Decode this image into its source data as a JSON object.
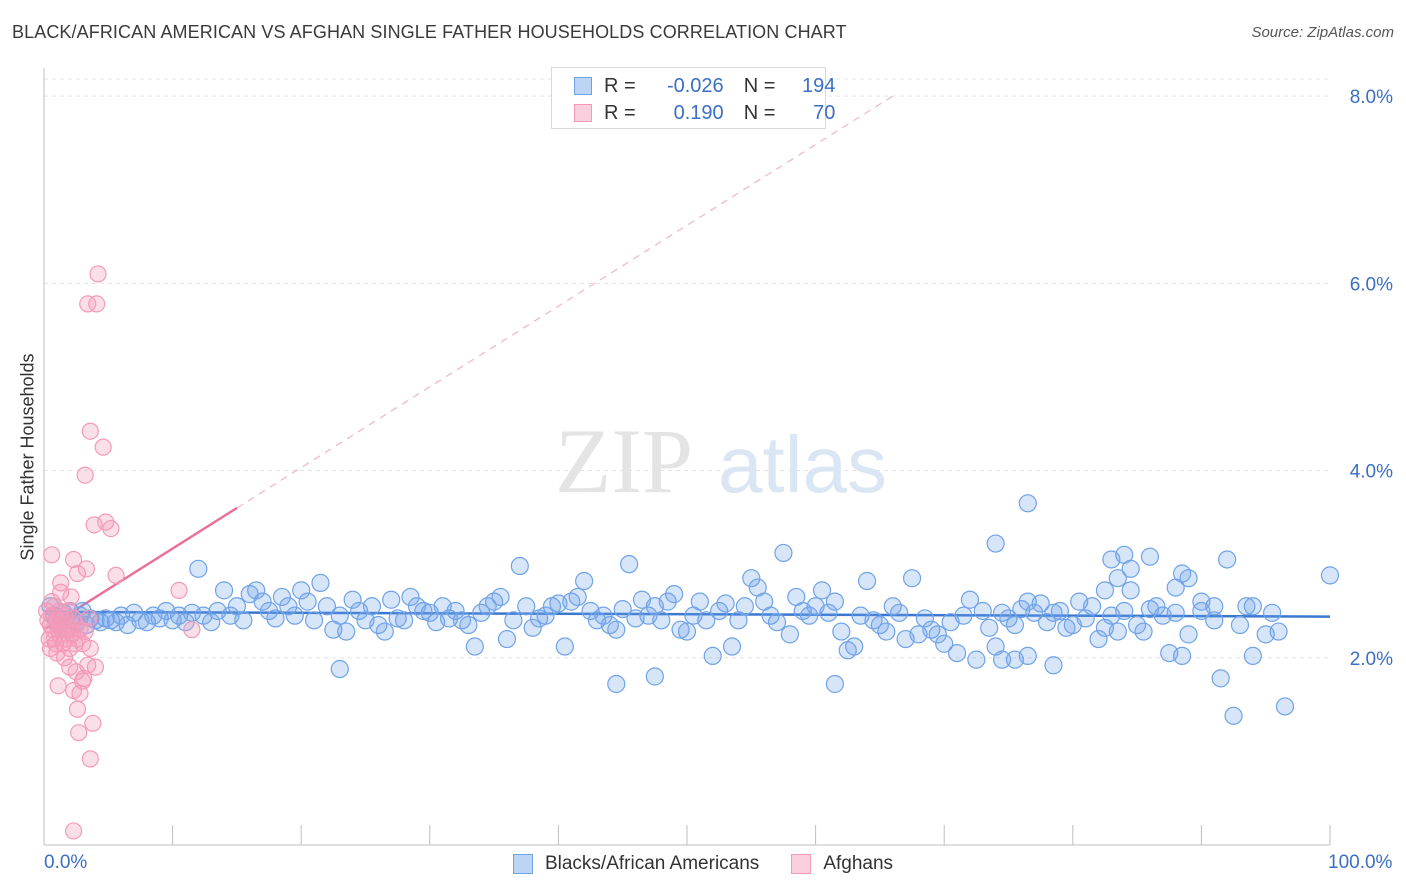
{
  "header": {
    "title": "BLACK/AFRICAN AMERICAN VS AFGHAN SINGLE FATHER HOUSEHOLDS CORRELATION CHART",
    "source": "Source: ZipAtlas.com"
  },
  "watermark": {
    "zip": "ZIP",
    "atlas": "atlas"
  },
  "legend": {
    "rows": [
      {
        "r_label": "R =",
        "r_value": "-0.026",
        "n_label": "N =",
        "n_value": "194"
      },
      {
        "r_label": "R =",
        "r_value": "0.190",
        "n_label": "N =",
        "n_value": "70"
      }
    ]
  },
  "colors": {
    "blue": "#6fa3e8",
    "blue_line": "#3a78d0",
    "pink": "#f49ab8",
    "pink_line": "#e8709a",
    "axis_text": "#3a6fc4"
  },
  "chart_data": {
    "type": "scatter",
    "title": "BLACK/AFRICAN AMERICAN VS AFGHAN SINGLE FATHER HOUSEHOLDS CORRELATION CHART",
    "xlabel": "",
    "ylabel": "Single Father Households",
    "xlim": [
      0,
      100
    ],
    "ylim": [
      0,
      8.3
    ],
    "x_tick_labels": [
      "0.0%",
      "100.0%"
    ],
    "y_ticks": [
      2,
      4,
      6,
      8
    ],
    "y_tick_labels": [
      "2.0%",
      "4.0%",
      "6.0%",
      "8.0%"
    ],
    "grid": "horizontal dashed",
    "legend_position": "bottom",
    "series": [
      {
        "name": "Blacks/African Americans",
        "color": "#6fa3e8",
        "trend": {
          "x": [
            0,
            100
          ],
          "y": [
            2.49,
            2.44
          ]
        },
        "points": [
          [
            0.5,
            2.55
          ],
          [
            0.8,
            2.45
          ],
          [
            1,
            2.4
          ],
          [
            1.2,
            2.35
          ],
          [
            1.5,
            2.48
          ],
          [
            1.8,
            2.3
          ],
          [
            2,
            2.5
          ],
          [
            2.2,
            2.42
          ],
          [
            2.5,
            2.38
          ],
          [
            2.8,
            2.45
          ],
          [
            3,
            2.5
          ],
          [
            3.3,
            2.35
          ],
          [
            3.6,
            2.42
          ],
          [
            4,
            2.4
          ],
          [
            4.4,
            2.38
          ],
          [
            4.8,
            2.42
          ],
          [
            5.2,
            2.4
          ],
          [
            5.6,
            2.38
          ],
          [
            6,
            2.45
          ],
          [
            6.5,
            2.35
          ],
          [
            7,
            2.48
          ],
          [
            7.5,
            2.4
          ],
          [
            8,
            2.38
          ],
          [
            8.5,
            2.45
          ],
          [
            9,
            2.42
          ],
          [
            9.5,
            2.5
          ],
          [
            10,
            2.4
          ],
          [
            10.5,
            2.45
          ],
          [
            11,
            2.38
          ],
          [
            11.5,
            2.48
          ],
          [
            12,
            2.95
          ],
          [
            12.4,
            2.45
          ],
          [
            13,
            2.38
          ],
          [
            13.5,
            2.5
          ],
          [
            14,
            2.72
          ],
          [
            14.5,
            2.45
          ],
          [
            15,
            2.55
          ],
          [
            15.5,
            2.4
          ],
          [
            16,
            2.68
          ],
          [
            16.5,
            2.72
          ],
          [
            17,
            2.6
          ],
          [
            17.5,
            2.5
          ],
          [
            18,
            2.42
          ],
          [
            18.5,
            2.65
          ],
          [
            19,
            2.55
          ],
          [
            19.5,
            2.45
          ],
          [
            20,
            2.72
          ],
          [
            20.5,
            2.6
          ],
          [
            21,
            2.4
          ],
          [
            21.5,
            2.8
          ],
          [
            22,
            2.55
          ],
          [
            22.5,
            2.3
          ],
          [
            23,
            2.45
          ],
          [
            23.5,
            2.28
          ],
          [
            24,
            2.62
          ],
          [
            24.5,
            2.5
          ],
          [
            25,
            2.4
          ],
          [
            25.5,
            2.55
          ],
          [
            26,
            2.35
          ],
          [
            26.5,
            2.28
          ],
          [
            27,
            2.62
          ],
          [
            27.5,
            2.42
          ],
          [
            28,
            2.4
          ],
          [
            28.5,
            2.65
          ],
          [
            29,
            2.55
          ],
          [
            29.5,
            2.5
          ],
          [
            30,
            2.48
          ],
          [
            30.5,
            2.38
          ],
          [
            31,
            2.55
          ],
          [
            31.5,
            2.42
          ],
          [
            32,
            2.5
          ],
          [
            32.5,
            2.4
          ],
          [
            33,
            2.35
          ],
          [
            33.5,
            2.12
          ],
          [
            34,
            2.48
          ],
          [
            34.5,
            2.55
          ],
          [
            35,
            2.6
          ],
          [
            35.5,
            2.65
          ],
          [
            36,
            2.2
          ],
          [
            36.5,
            2.4
          ],
          [
            37,
            2.98
          ],
          [
            37.5,
            2.55
          ],
          [
            38,
            2.32
          ],
          [
            38.5,
            2.42
          ],
          [
            39,
            2.45
          ],
          [
            39.5,
            2.55
          ],
          [
            40,
            2.58
          ],
          [
            40.5,
            2.12
          ],
          [
            41,
            2.6
          ],
          [
            41.5,
            2.65
          ],
          [
            42,
            2.82
          ],
          [
            42.5,
            2.5
          ],
          [
            43,
            2.4
          ],
          [
            43.5,
            2.45
          ],
          [
            44,
            2.35
          ],
          [
            44.5,
            2.3
          ],
          [
            45,
            2.52
          ],
          [
            45.5,
            3.0
          ],
          [
            46,
            2.42
          ],
          [
            46.5,
            2.62
          ],
          [
            47,
            2.45
          ],
          [
            47.5,
            2.55
          ],
          [
            48,
            2.4
          ],
          [
            48.5,
            2.6
          ],
          [
            49,
            2.68
          ],
          [
            49.5,
            2.3
          ],
          [
            50,
            2.28
          ],
          [
            50.5,
            2.45
          ],
          [
            51,
            2.6
          ],
          [
            51.5,
            2.4
          ],
          [
            52,
            2.02
          ],
          [
            52.5,
            2.5
          ],
          [
            53,
            2.58
          ],
          [
            53.5,
            2.12
          ],
          [
            54,
            2.4
          ],
          [
            54.5,
            2.55
          ],
          [
            55,
            2.85
          ],
          [
            55.5,
            2.75
          ],
          [
            56,
            2.6
          ],
          [
            56.5,
            2.45
          ],
          [
            57,
            2.38
          ],
          [
            57.5,
            3.12
          ],
          [
            58,
            2.25
          ],
          [
            58.5,
            2.65
          ],
          [
            59,
            2.5
          ],
          [
            59.5,
            2.45
          ],
          [
            60,
            2.55
          ],
          [
            60.5,
            2.72
          ],
          [
            61,
            2.48
          ],
          [
            61.5,
            2.6
          ],
          [
            62,
            2.28
          ],
          [
            62.5,
            2.08
          ],
          [
            63,
            2.12
          ],
          [
            63.5,
            2.45
          ],
          [
            64,
            2.82
          ],
          [
            64.5,
            2.4
          ],
          [
            65,
            2.35
          ],
          [
            65.5,
            2.28
          ],
          [
            66,
            2.55
          ],
          [
            66.5,
            2.48
          ],
          [
            67,
            2.2
          ],
          [
            67.5,
            2.85
          ],
          [
            68,
            2.25
          ],
          [
            68.5,
            2.42
          ],
          [
            69,
            2.3
          ],
          [
            69.5,
            2.25
          ],
          [
            70,
            2.15
          ],
          [
            70.5,
            2.38
          ],
          [
            71,
            2.05
          ],
          [
            71.5,
            2.45
          ],
          [
            72,
            2.62
          ],
          [
            72.5,
            1.98
          ],
          [
            73,
            2.5
          ],
          [
            73.5,
            2.32
          ],
          [
            74,
            2.12
          ],
          [
            74.5,
            2.48
          ],
          [
            75,
            2.42
          ],
          [
            75.5,
            2.35
          ],
          [
            76,
            2.52
          ],
          [
            76.5,
            2.6
          ],
          [
            77,
            2.48
          ],
          [
            77.5,
            2.58
          ],
          [
            78,
            2.38
          ],
          [
            78.5,
            2.48
          ],
          [
            79,
            2.5
          ],
          [
            79.5,
            2.32
          ],
          [
            80,
            2.35
          ],
          [
            80.5,
            2.6
          ],
          [
            81,
            2.42
          ],
          [
            81.5,
            2.55
          ],
          [
            82,
            2.2
          ],
          [
            82.5,
            2.32
          ],
          [
            83,
            2.45
          ],
          [
            83.5,
            2.28
          ],
          [
            84,
            2.5
          ],
          [
            84.5,
            2.72
          ],
          [
            85,
            2.35
          ],
          [
            85.5,
            2.28
          ],
          [
            86,
            2.52
          ],
          [
            86.5,
            2.55
          ],
          [
            87,
            2.45
          ],
          [
            88,
            2.48
          ],
          [
            89,
            2.25
          ],
          [
            90,
            2.5
          ],
          [
            91,
            2.4
          ],
          [
            92,
            3.05
          ],
          [
            93,
            2.35
          ],
          [
            94,
            2.55
          ],
          [
            95,
            2.25
          ],
          [
            100,
            2.88
          ]
        ],
        "outliers": [
          [
            23,
            1.88
          ],
          [
            44.5,
            1.72
          ],
          [
            47.5,
            1.8
          ],
          [
            61.5,
            1.72
          ],
          [
            78.5,
            1.92
          ],
          [
            76.5,
            2.02
          ],
          [
            74.5,
            1.98
          ],
          [
            75.5,
            1.98
          ],
          [
            88.5,
            2.02
          ],
          [
            91.5,
            1.78
          ],
          [
            92.5,
            1.38
          ],
          [
            96.5,
            1.48
          ],
          [
            94,
            2.02
          ],
          [
            87.5,
            2.05
          ],
          [
            76.5,
            3.65
          ],
          [
            74,
            3.22
          ],
          [
            86,
            3.08
          ],
          [
            84,
            3.1
          ],
          [
            83,
            3.05
          ],
          [
            82.5,
            2.72
          ],
          [
            83.5,
            2.85
          ],
          [
            84.5,
            2.95
          ],
          [
            88,
            2.75
          ],
          [
            88.5,
            2.9
          ],
          [
            89,
            2.85
          ],
          [
            90,
            2.6
          ],
          [
            91,
            2.55
          ],
          [
            93.5,
            2.55
          ],
          [
            95.5,
            2.48
          ],
          [
            96,
            2.28
          ]
        ]
      },
      {
        "name": "Afghans",
        "color": "#f49ab8",
        "trend": {
          "x": [
            0,
            15
          ],
          "y": [
            2.3,
            3.6
          ]
        },
        "trend_extension": {
          "x": [
            15,
            66
          ],
          "y": [
            3.6,
            8.0
          ]
        },
        "points": [
          [
            0.2,
            2.5
          ],
          [
            0.3,
            2.4
          ],
          [
            0.4,
            2.2
          ],
          [
            0.5,
            2.35
          ],
          [
            0.5,
            2.1
          ],
          [
            0.6,
            2.45
          ],
          [
            0.6,
            2.6
          ],
          [
            0.7,
            2.3
          ],
          [
            0.8,
            2.2
          ],
          [
            0.8,
            2.55
          ],
          [
            0.9,
            2.15
          ],
          [
            1.0,
            2.4
          ],
          [
            1.0,
            2.05
          ],
          [
            1.1,
            2.3
          ],
          [
            1.2,
            2.5
          ],
          [
            1.2,
            2.25
          ],
          [
            1.3,
            2.35
          ],
          [
            1.3,
            2.7
          ],
          [
            1.4,
            2.4
          ],
          [
            1.5,
            2.15
          ],
          [
            1.6,
            2.3
          ],
          [
            1.6,
            2.45
          ],
          [
            1.7,
            2.2
          ],
          [
            1.8,
            2.35
          ],
          [
            1.9,
            2.5
          ],
          [
            2.0,
            2.1
          ],
          [
            2.1,
            2.3
          ],
          [
            2.2,
            2.25
          ],
          [
            2.3,
            2.42
          ],
          [
            2.4,
            2.15
          ],
          [
            2.5,
            2.35
          ],
          [
            2.6,
            2.2
          ],
          [
            2.8,
            2.3
          ],
          [
            3.0,
            2.15
          ],
          [
            3.2,
            2.28
          ],
          [
            3.5,
            2.42
          ],
          [
            0.6,
            3.1
          ],
          [
            1.3,
            2.8
          ],
          [
            2.3,
            3.05
          ],
          [
            2.6,
            2.9
          ],
          [
            3.3,
            2.95
          ],
          [
            3.6,
            2.1
          ],
          [
            2.1,
            2.65
          ],
          [
            1.6,
            2.0
          ],
          [
            2.0,
            1.9
          ],
          [
            2.5,
            1.85
          ],
          [
            3.0,
            1.75
          ],
          [
            3.4,
            1.92
          ],
          [
            1.1,
            1.7
          ],
          [
            2.3,
            1.65
          ],
          [
            2.8,
            1.62
          ],
          [
            3.1,
            1.78
          ],
          [
            2.6,
            1.45
          ],
          [
            3.8,
            1.3
          ],
          [
            2.7,
            1.2
          ],
          [
            3.6,
            0.92
          ],
          [
            2.3,
            0.15
          ],
          [
            3.4,
            5.78
          ],
          [
            4.2,
            6.1
          ],
          [
            4.1,
            5.78
          ],
          [
            3.6,
            4.42
          ],
          [
            3.2,
            3.95
          ],
          [
            4.6,
            4.25
          ],
          [
            3.9,
            3.42
          ],
          [
            5.2,
            3.38
          ],
          [
            4.8,
            3.45
          ],
          [
            5.6,
            2.88
          ],
          [
            10.5,
            2.72
          ],
          [
            11.5,
            2.3
          ],
          [
            4.0,
            1.9
          ]
        ]
      }
    ]
  }
}
